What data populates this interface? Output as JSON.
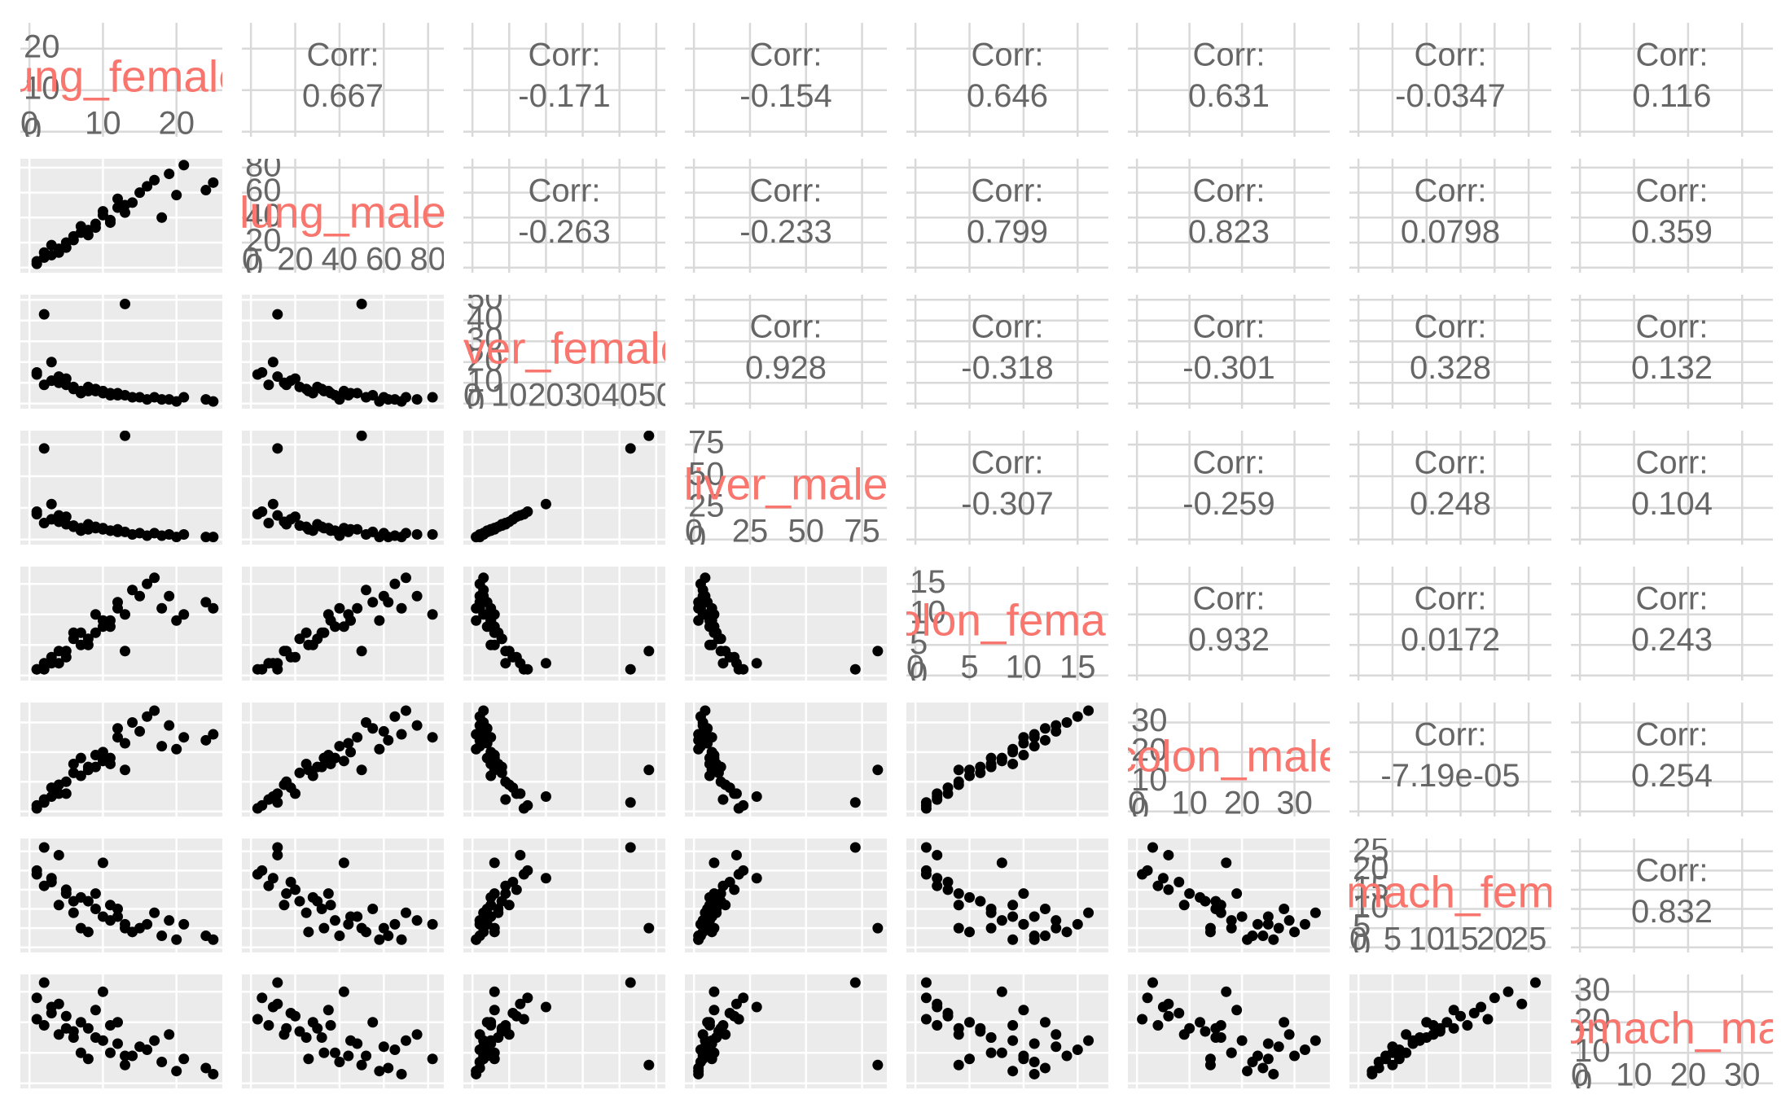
{
  "chart_data": {
    "type": "pairs",
    "point_color": "#000000",
    "label_color": "#F8766D",
    "corr_label": "Corr:",
    "variables": [
      {
        "name": "lung_female",
        "lim": [
          0,
          25
        ],
        "ticks": [
          0,
          10,
          20
        ],
        "values": [
          21,
          13,
          2,
          8,
          10,
          12,
          5,
          3,
          15,
          18,
          6,
          9,
          1,
          4,
          11,
          14,
          7,
          16,
          2,
          20,
          24,
          10,
          12,
          3,
          6,
          9,
          13,
          17,
          1,
          5,
          8,
          19,
          25,
          4,
          11,
          7
        ]
      },
      {
        "name": "lung_male",
        "lim": [
          0,
          83
        ],
        "ticks": [
          0,
          20,
          40,
          60,
          80
        ],
        "values": [
          82,
          50,
          12,
          30,
          45,
          55,
          20,
          10,
          60,
          40,
          25,
          35,
          5,
          15,
          38,
          52,
          28,
          65,
          8,
          58,
          62,
          42,
          48,
          18,
          22,
          32,
          44,
          70,
          3,
          16,
          26,
          75,
          68,
          12,
          36,
          33
        ]
      },
      {
        "name": "liver_female",
        "lim": [
          0,
          50
        ],
        "ticks": [
          0,
          10,
          20,
          30,
          40,
          50
        ],
        "values": [
          3,
          48,
          43,
          8,
          5,
          4,
          12,
          20,
          3,
          2,
          7,
          6,
          15,
          10,
          4,
          3,
          5,
          2,
          9,
          1,
          2,
          6,
          5,
          11,
          8,
          7,
          4,
          3,
          14,
          9,
          6,
          2,
          1,
          13,
          5,
          6
        ]
      },
      {
        "name": "liver_male",
        "lim": [
          0,
          82
        ],
        "ticks": [
          0,
          25,
          50,
          75
        ],
        "values": [
          4,
          82,
          72,
          12,
          8,
          6,
          18,
          28,
          5,
          3,
          10,
          9,
          22,
          14,
          7,
          4,
          7,
          3,
          13,
          2,
          2,
          9,
          8,
          16,
          11,
          10,
          6,
          5,
          20,
          12,
          8,
          4,
          2,
          19,
          7,
          9
        ]
      },
      {
        "name": "colon_female",
        "lim": [
          0,
          17
        ],
        "ticks": [
          0,
          5,
          10,
          15
        ],
        "values": [
          10,
          4,
          1,
          6,
          9,
          12,
          3,
          2,
          13,
          11,
          7,
          10,
          1,
          4,
          8,
          14,
          5,
          15,
          2,
          9,
          12,
          8,
          11,
          3,
          6,
          7,
          10,
          16,
          1,
          4,
          5,
          13,
          11,
          2,
          9,
          7
        ]
      },
      {
        "name": "colon_male",
        "lim": [
          0,
          35
        ],
        "ticks": [
          0,
          10,
          20,
          30
        ],
        "values": [
          25,
          14,
          3,
          15,
          20,
          28,
          6,
          5,
          27,
          22,
          16,
          19,
          2,
          9,
          18,
          30,
          12,
          32,
          4,
          21,
          24,
          17,
          25,
          8,
          13,
          15,
          23,
          34,
          1,
          10,
          14,
          29,
          26,
          6,
          16,
          18
        ]
      },
      {
        "name": "stomach_female",
        "lim": [
          0,
          27
        ],
        "ticks": [
          0,
          5,
          10,
          15,
          20,
          25
        ],
        "values": [
          6,
          5,
          26,
          12,
          8,
          10,
          15,
          18,
          5,
          3,
          9,
          14,
          20,
          11,
          7,
          4,
          13,
          6,
          16,
          2,
          3,
          22,
          8,
          17,
          12,
          10,
          6,
          9,
          19,
          14,
          4,
          7,
          2,
          24,
          11,
          5
        ]
      },
      {
        "name": "stomach_male",
        "lim": [
          0,
          34
        ],
        "ticks": [
          0,
          10,
          20,
          30
        ],
        "values": [
          8,
          6,
          33,
          18,
          14,
          20,
          22,
          25,
          12,
          7,
          15,
          24,
          28,
          16,
          10,
          9,
          20,
          11,
          19,
          4,
          5,
          30,
          13,
          23,
          17,
          15,
          9,
          14,
          21,
          18,
          8,
          16,
          3,
          26,
          19,
          10
        ]
      }
    ],
    "correlations": [
      0.667,
      -0.171,
      -0.154,
      0.646,
      0.631,
      -0.0347,
      0.116,
      -0.263,
      -0.233,
      0.799,
      0.823,
      0.0798,
      0.359,
      0.928,
      -0.318,
      -0.301,
      0.328,
      0.132,
      -0.307,
      -0.259,
      0.248,
      0.104,
      0.932,
      0.0172,
      0.243,
      -7.19e-05,
      0.254,
      0.832
    ],
    "correlation_labels": [
      "0.667",
      "-0.171",
      "-0.154",
      "0.646",
      "0.631",
      "-0.0347",
      "0.116",
      "-0.263",
      "-0.233",
      "0.799",
      "0.823",
      "0.0798",
      "0.359",
      "0.928",
      "-0.318",
      "-0.301",
      "0.328",
      "0.132",
      "-0.307",
      "-0.259",
      "0.248",
      "0.104",
      "0.932",
      "0.0172",
      "0.243",
      "-7.19e-05",
      "0.254",
      "0.832"
    ]
  }
}
